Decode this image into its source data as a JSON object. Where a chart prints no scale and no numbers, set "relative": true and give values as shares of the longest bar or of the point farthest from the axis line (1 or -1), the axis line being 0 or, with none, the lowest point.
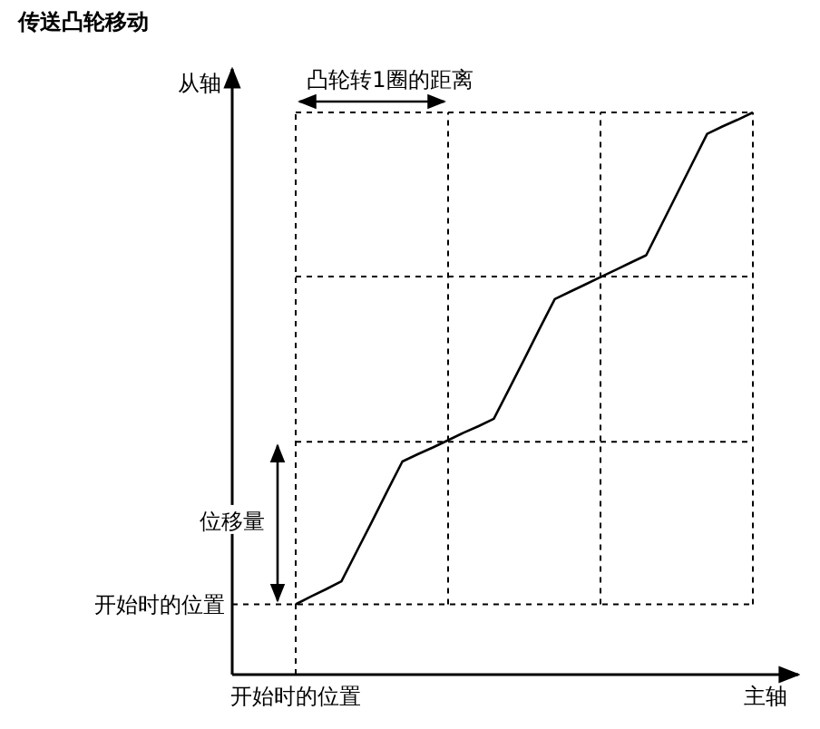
{
  "chart_data": {
    "type": "line",
    "title": "传送凸轮移动",
    "xlabel": "主轴",
    "ylabel": "从轴",
    "relative": true,
    "categories": [
      null,
      null,
      null,
      null,
      null,
      null,
      null,
      null,
      null,
      null,
      null,
      null,
      null,
      null,
      null,
      null,
      null,
      null,
      null,
      null,
      null,
      null,
      null,
      null,
      null,
      null,
      null,
      null,
      null,
      null,
      null
    ],
    "series": [
      {
        "color": "#000000",
        "values": [
          0.125,
          0.139,
          0.152,
          0.166,
          0.219,
          0.272,
          0.326,
          0.379,
          0.392,
          0.404,
          0.417,
          0.43,
          0.442,
          0.455,
          0.508,
          0.561,
          0.615,
          0.668,
          0.681,
          0.694,
          0.707,
          0.72,
          0.733,
          0.746,
          0.8,
          0.854,
          0.908,
          0.962,
          0.975,
          0.987,
          1
        ]
      }
    ],
    "ref_lines": [
      {
        "axis": "y",
        "value": 0.125,
        "label": "开始时的位置",
        "line_style": "dashed",
        "color": "#000000"
      },
      {
        "axis": "y",
        "value": 0.414,
        "line_style": "dashed",
        "color": "#000000"
      },
      {
        "axis": "y",
        "value": 0.708,
        "line_style": "dashed",
        "color": "#000000"
      }
    ],
    "marker": "none",
    "line_style": "solid",
    "annotations": [
      "凸轮转1圈的距离",
      "位移量",
      "开始时的位置"
    ]
  }
}
